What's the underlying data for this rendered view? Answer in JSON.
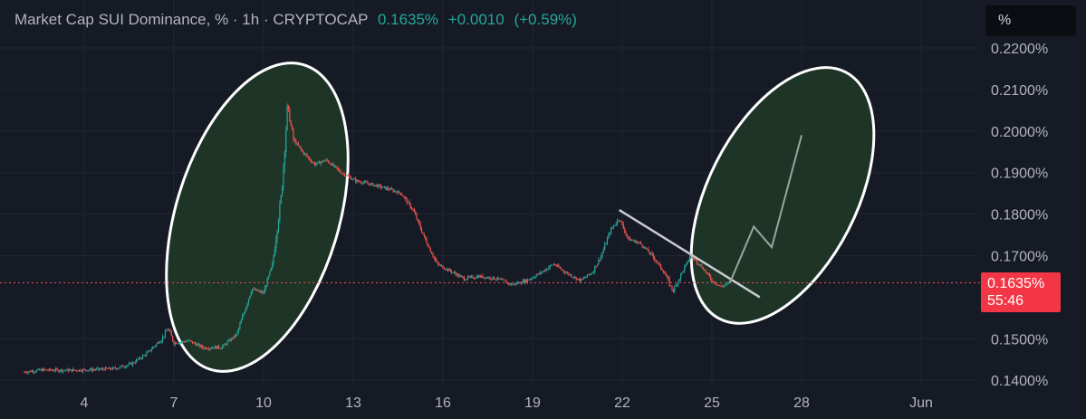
{
  "header": {
    "symbol_line": "Market Cap SUI Dominance, % · 1h · CRYPTOCAP",
    "last": "0.1635%",
    "change": "+0.0010",
    "change_pct": "(+0.59%)"
  },
  "unit_button": "%",
  "price_tag": {
    "value": "0.1635%",
    "countdown": "55:46"
  },
  "colors": {
    "background": "#161a25",
    "up": "#26a69a",
    "down": "#ef5350",
    "grid": "#22262f",
    "axis_text": "#b2b5be",
    "highlight_fill": "#1f3a28",
    "highlight_stroke": "#ffffff",
    "trendline": "#c9cbd1"
  },
  "chart_data": {
    "type": "candlestick",
    "y_unit": "%",
    "y_ticks": [
      "0.2200%",
      "0.2100%",
      "0.2000%",
      "0.1900%",
      "0.1800%",
      "0.1700%",
      "0.1500%",
      "0.1400%"
    ],
    "x_ticks": [
      "4",
      "7",
      "10",
      "13",
      "16",
      "19",
      "22",
      "25",
      "28",
      "Jun"
    ],
    "current_price": 0.1635,
    "series_close": [
      {
        "day": 2.0,
        "v": 0.142
      },
      {
        "day": 2.6,
        "v": 0.1425
      },
      {
        "day": 3.5,
        "v": 0.1424
      },
      {
        "day": 4.4,
        "v": 0.1426
      },
      {
        "day": 5.0,
        "v": 0.1428
      },
      {
        "day": 5.6,
        "v": 0.144
      },
      {
        "day": 6.1,
        "v": 0.1465
      },
      {
        "day": 6.6,
        "v": 0.15
      },
      {
        "day": 6.8,
        "v": 0.1525
      },
      {
        "day": 7.0,
        "v": 0.149
      },
      {
        "day": 7.5,
        "v": 0.1495
      },
      {
        "day": 8.0,
        "v": 0.1478
      },
      {
        "day": 8.6,
        "v": 0.148
      },
      {
        "day": 9.1,
        "v": 0.151
      },
      {
        "day": 9.6,
        "v": 0.162
      },
      {
        "day": 10.0,
        "v": 0.161
      },
      {
        "day": 10.3,
        "v": 0.168
      },
      {
        "day": 10.6,
        "v": 0.185
      },
      {
        "day": 10.8,
        "v": 0.206
      },
      {
        "day": 11.0,
        "v": 0.198
      },
      {
        "day": 11.3,
        "v": 0.195
      },
      {
        "day": 11.7,
        "v": 0.192
      },
      {
        "day": 12.1,
        "v": 0.193
      },
      {
        "day": 12.6,
        "v": 0.19
      },
      {
        "day": 13.1,
        "v": 0.188
      },
      {
        "day": 13.7,
        "v": 0.187
      },
      {
        "day": 14.2,
        "v": 0.186
      },
      {
        "day": 14.6,
        "v": 0.185
      },
      {
        "day": 15.0,
        "v": 0.181
      },
      {
        "day": 15.4,
        "v": 0.174
      },
      {
        "day": 15.8,
        "v": 0.168
      },
      {
        "day": 16.2,
        "v": 0.1665
      },
      {
        "day": 16.7,
        "v": 0.1645
      },
      {
        "day": 17.2,
        "v": 0.165
      },
      {
        "day": 17.8,
        "v": 0.1645
      },
      {
        "day": 18.3,
        "v": 0.163
      },
      {
        "day": 18.8,
        "v": 0.164
      },
      {
        "day": 19.3,
        "v": 0.166
      },
      {
        "day": 19.7,
        "v": 0.168
      },
      {
        "day": 20.1,
        "v": 0.166
      },
      {
        "day": 20.6,
        "v": 0.164
      },
      {
        "day": 21.0,
        "v": 0.166
      },
      {
        "day": 21.3,
        "v": 0.17
      },
      {
        "day": 21.6,
        "v": 0.176
      },
      {
        "day": 21.9,
        "v": 0.179
      },
      {
        "day": 22.2,
        "v": 0.174
      },
      {
        "day": 22.6,
        "v": 0.173
      },
      {
        "day": 23.0,
        "v": 0.17
      },
      {
        "day": 23.4,
        "v": 0.166
      },
      {
        "day": 23.7,
        "v": 0.1615
      },
      {
        "day": 24.0,
        "v": 0.166
      },
      {
        "day": 24.3,
        "v": 0.17
      },
      {
        "day": 24.7,
        "v": 0.167
      },
      {
        "day": 25.0,
        "v": 0.164
      },
      {
        "day": 25.3,
        "v": 0.1625
      },
      {
        "day": 25.6,
        "v": 0.1635
      }
    ],
    "projection": [
      {
        "day": 25.6,
        "v": 0.1635
      },
      {
        "day": 26.4,
        "v": 0.177
      },
      {
        "day": 27.0,
        "v": 0.172
      },
      {
        "day": 28.0,
        "v": 0.199
      }
    ],
    "trendline": [
      {
        "day": 21.9,
        "v": 0.181
      },
      {
        "day": 26.6,
        "v": 0.16
      }
    ]
  }
}
